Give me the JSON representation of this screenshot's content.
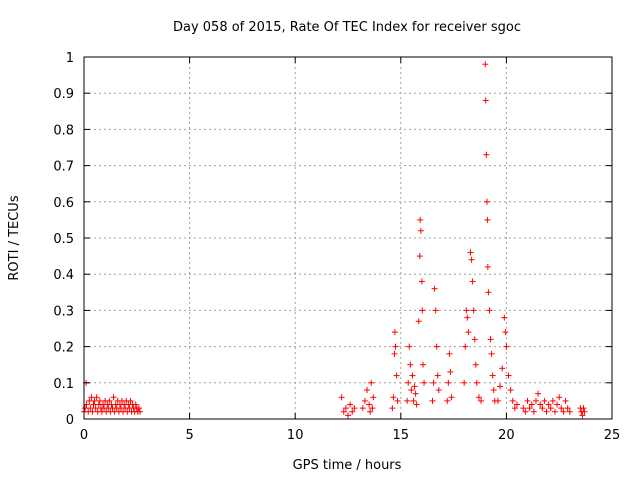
{
  "chart_data": {
    "type": "scatter",
    "title": "Day 058 of 2015, Rate Of TEC Index for receiver sgoc",
    "xlabel": "GPS time / hours",
    "ylabel": "ROTI / TECUs",
    "xlim": [
      0,
      25
    ],
    "ylim": [
      0,
      1
    ],
    "x_ticks": [
      0,
      5,
      10,
      15,
      20,
      25
    ],
    "x_tick_labels": [
      "0",
      "5",
      "10",
      "15",
      "20",
      "25"
    ],
    "y_ticks": [
      0,
      0.1,
      0.2,
      0.3,
      0.4,
      0.5,
      0.6,
      0.7,
      0.8,
      0.9,
      1
    ],
    "y_tick_labels": [
      "0",
      "0.1",
      "0.2",
      "0.3",
      "0.4",
      "0.5",
      "0.6",
      "0.7",
      "0.8",
      "0.9",
      "1"
    ],
    "grid": true,
    "marker": "+",
    "color": "#ff0000",
    "series": [
      {
        "points": [
          [
            0.0,
            0.02
          ],
          [
            0.05,
            0.03
          ],
          [
            0.1,
            0.1
          ],
          [
            0.12,
            0.04
          ],
          [
            0.2,
            0.02
          ],
          [
            0.25,
            0.05
          ],
          [
            0.3,
            0.03
          ],
          [
            0.35,
            0.06
          ],
          [
            0.4,
            0.02
          ],
          [
            0.45,
            0.04
          ],
          [
            0.5,
            0.05
          ],
          [
            0.55,
            0.03
          ],
          [
            0.6,
            0.06
          ],
          [
            0.65,
            0.02
          ],
          [
            0.7,
            0.04
          ],
          [
            0.75,
            0.05
          ],
          [
            0.8,
            0.03
          ],
          [
            0.85,
            0.02
          ],
          [
            0.9,
            0.04
          ],
          [
            0.95,
            0.03
          ],
          [
            1.0,
            0.05
          ],
          [
            1.05,
            0.02
          ],
          [
            1.1,
            0.04
          ],
          [
            1.15,
            0.03
          ],
          [
            1.2,
            0.05
          ],
          [
            1.25,
            0.02
          ],
          [
            1.3,
            0.04
          ],
          [
            1.35,
            0.03
          ],
          [
            1.4,
            0.06
          ],
          [
            1.45,
            0.02
          ],
          [
            1.5,
            0.04
          ],
          [
            1.55,
            0.03
          ],
          [
            1.6,
            0.05
          ],
          [
            1.65,
            0.02
          ],
          [
            1.7,
            0.04
          ],
          [
            1.75,
            0.03
          ],
          [
            1.8,
            0.05
          ],
          [
            1.85,
            0.02
          ],
          [
            1.9,
            0.04
          ],
          [
            1.95,
            0.03
          ],
          [
            2.0,
            0.05
          ],
          [
            2.05,
            0.02
          ],
          [
            2.1,
            0.04
          ],
          [
            2.15,
            0.03
          ],
          [
            2.2,
            0.05
          ],
          [
            2.25,
            0.02
          ],
          [
            2.3,
            0.04
          ],
          [
            2.35,
            0.03
          ],
          [
            2.4,
            0.02
          ],
          [
            2.45,
            0.04
          ],
          [
            2.5,
            0.03
          ],
          [
            2.55,
            0.02
          ],
          [
            2.6,
            0.03
          ],
          [
            2.65,
            0.02
          ],
          [
            12.2,
            0.06
          ],
          [
            12.3,
            0.02
          ],
          [
            12.4,
            0.03
          ],
          [
            12.5,
            0.01
          ],
          [
            12.6,
            0.04
          ],
          [
            12.7,
            0.02
          ],
          [
            12.8,
            0.03
          ],
          [
            13.2,
            0.03
          ],
          [
            13.3,
            0.05
          ],
          [
            13.4,
            0.08
          ],
          [
            13.5,
            0.04
          ],
          [
            13.55,
            0.02
          ],
          [
            13.6,
            0.1
          ],
          [
            13.65,
            0.03
          ],
          [
            13.7,
            0.06
          ],
          [
            14.6,
            0.03
          ],
          [
            14.65,
            0.06
          ],
          [
            14.7,
            0.18
          ],
          [
            14.72,
            0.24
          ],
          [
            14.75,
            0.2
          ],
          [
            14.8,
            0.12
          ],
          [
            14.85,
            0.05
          ],
          [
            15.3,
            0.05
          ],
          [
            15.35,
            0.1
          ],
          [
            15.4,
            0.2
          ],
          [
            15.45,
            0.15
          ],
          [
            15.5,
            0.08
          ],
          [
            15.55,
            0.12
          ],
          [
            15.6,
            0.05
          ],
          [
            15.65,
            0.09
          ],
          [
            15.7,
            0.07
          ],
          [
            15.75,
            0.04
          ],
          [
            15.85,
            0.27
          ],
          [
            15.9,
            0.45
          ],
          [
            15.92,
            0.55
          ],
          [
            15.95,
            0.52
          ],
          [
            16.0,
            0.38
          ],
          [
            16.02,
            0.3
          ],
          [
            16.05,
            0.15
          ],
          [
            16.1,
            0.1
          ],
          [
            16.5,
            0.05
          ],
          [
            16.55,
            0.1
          ],
          [
            16.6,
            0.36
          ],
          [
            16.65,
            0.3
          ],
          [
            16.7,
            0.2
          ],
          [
            16.75,
            0.12
          ],
          [
            16.8,
            0.08
          ],
          [
            17.2,
            0.05
          ],
          [
            17.25,
            0.1
          ],
          [
            17.3,
            0.18
          ],
          [
            17.35,
            0.13
          ],
          [
            17.4,
            0.06
          ],
          [
            18.0,
            0.1
          ],
          [
            18.05,
            0.2
          ],
          [
            18.1,
            0.3
          ],
          [
            18.15,
            0.28
          ],
          [
            18.2,
            0.24
          ],
          [
            18.3,
            0.46
          ],
          [
            18.35,
            0.44
          ],
          [
            18.4,
            0.38
          ],
          [
            18.45,
            0.3
          ],
          [
            18.5,
            0.22
          ],
          [
            18.55,
            0.15
          ],
          [
            18.6,
            0.1
          ],
          [
            18.7,
            0.06
          ],
          [
            18.8,
            0.05
          ],
          [
            19.0,
            0.98
          ],
          [
            19.02,
            0.88
          ],
          [
            19.05,
            0.73
          ],
          [
            19.08,
            0.6
          ],
          [
            19.1,
            0.55
          ],
          [
            19.12,
            0.42
          ],
          [
            19.15,
            0.35
          ],
          [
            19.2,
            0.3
          ],
          [
            19.25,
            0.22
          ],
          [
            19.3,
            0.18
          ],
          [
            19.35,
            0.12
          ],
          [
            19.4,
            0.08
          ],
          [
            19.45,
            0.05
          ],
          [
            19.6,
            0.05
          ],
          [
            19.7,
            0.09
          ],
          [
            19.8,
            0.14
          ],
          [
            19.9,
            0.28
          ],
          [
            19.95,
            0.24
          ],
          [
            20.0,
            0.2
          ],
          [
            20.1,
            0.12
          ],
          [
            20.2,
            0.08
          ],
          [
            20.3,
            0.05
          ],
          [
            20.4,
            0.03
          ],
          [
            20.5,
            0.04
          ],
          [
            20.8,
            0.03
          ],
          [
            20.9,
            0.02
          ],
          [
            21.0,
            0.05
          ],
          [
            21.1,
            0.03
          ],
          [
            21.2,
            0.04
          ],
          [
            21.3,
            0.02
          ],
          [
            21.4,
            0.05
          ],
          [
            21.5,
            0.07
          ],
          [
            21.6,
            0.04
          ],
          [
            21.7,
            0.03
          ],
          [
            21.8,
            0.05
          ],
          [
            21.9,
            0.02
          ],
          [
            22.0,
            0.04
          ],
          [
            22.1,
            0.03
          ],
          [
            22.2,
            0.05
          ],
          [
            22.3,
            0.02
          ],
          [
            22.4,
            0.04
          ],
          [
            22.5,
            0.06
          ],
          [
            22.6,
            0.03
          ],
          [
            22.7,
            0.02
          ],
          [
            22.8,
            0.05
          ],
          [
            22.9,
            0.03
          ],
          [
            23.0,
            0.02
          ],
          [
            23.5,
            0.03
          ],
          [
            23.55,
            0.02
          ],
          [
            23.6,
            0.01
          ],
          [
            23.65,
            0.03
          ],
          [
            23.7,
            0.02
          ]
        ]
      }
    ]
  }
}
